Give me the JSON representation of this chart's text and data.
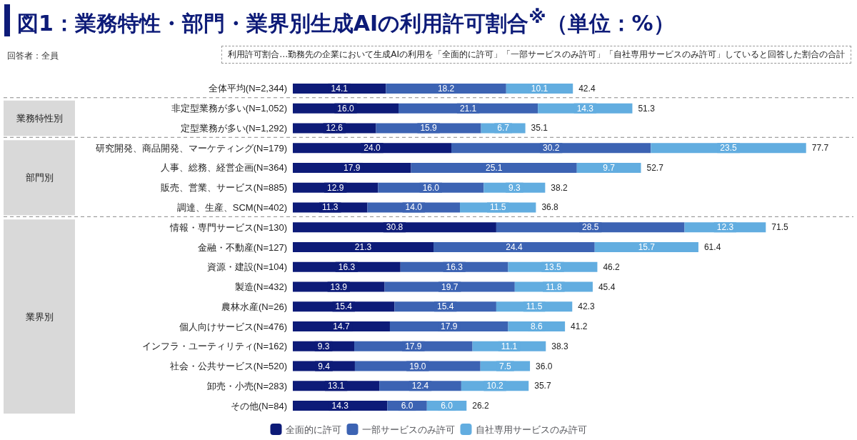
{
  "chart_data": {
    "type": "bar",
    "orientation": "horizontal",
    "stacked": true,
    "legend": "bottom",
    "title": "図1：業務特性・部門・業界別生成AIの利用許可割合$^{※}$（単位：%）",
    "subtitle": "回答者：全員",
    "annotations": [
      "利用許可割合…勤務先の企業において生成AIの利用を「全面的に許可」「一部サービスのみ許可」「自社専用サービスのみ許可」していると回答した割合の合計",
      "業務特性別",
      "部門別",
      "業界別"
    ],
    "categories": [
      "全体平均(N=2,344)",
      "非定型業務が多い(N=1,052)",
      "定型業務が多い(N=1,292)",
      "研究開発、商品開発、マーケティング(N=179)",
      "人事、総務、経営企画(N=364)",
      "販売、営業、サービス(N=885)",
      "調達、生産、SCM(N=402)",
      "情報・専門サービス(N=130)",
      "金融・不動産(N=127)",
      "資源・建設(N=104)",
      "製造(N=432)",
      "農林水産(N=26)",
      "個人向けサービス(N=476)",
      "インフラ・ユーティリティ(N=162)",
      "社会・公共サービス(N=520)",
      "卸売・小売(N=283)",
      "その他(N=84)"
    ],
    "series": [
      {
        "name": "全面的に許可",
        "color": "#0d1b78",
        "values": [
          14.1,
          16.0,
          12.6,
          24.0,
          17.9,
          12.9,
          11.3,
          30.8,
          21.3,
          16.3,
          13.9,
          15.4,
          14.7,
          9.3,
          9.4,
          13.1,
          14.3
        ],
        "value_labels": [
          "14.1",
          "16.0",
          "12.6",
          "24.0",
          "17.9",
          "12.9",
          "11.3",
          "30.8",
          "21.3",
          "16.3",
          "13.9",
          "15.4",
          "14.7",
          "9.3",
          "9.4",
          "13.1",
          "14.3"
        ]
      },
      {
        "name": "一部サービスのみ許可",
        "color": "#3c63b3",
        "values": [
          18.2,
          21.1,
          15.9,
          30.2,
          25.1,
          16.0,
          14.0,
          28.5,
          24.4,
          16.3,
          19.7,
          15.4,
          17.9,
          17.9,
          19.0,
          12.4,
          6.0
        ],
        "value_labels": [
          "18.2",
          "21.1",
          "15.9",
          "30.2",
          "25.1",
          "16.0",
          "14.0",
          "28.5",
          "24.4",
          "16.3",
          "19.7",
          "15.4",
          "17.9",
          "17.9",
          "19.0",
          "12.4",
          "6.0"
        ]
      },
      {
        "name": "自社専用サービスのみ許可",
        "color": "#62ade0",
        "values": [
          10.1,
          14.3,
          6.7,
          23.5,
          9.7,
          9.3,
          11.5,
          12.3,
          15.7,
          13.5,
          11.8,
          11.5,
          8.6,
          11.1,
          7.5,
          10.2,
          6.0
        ],
        "value_labels": [
          "10.1",
          "14.3",
          "6.7",
          "23.5",
          "9.7",
          "9.3",
          "11.5",
          "12.3",
          "15.7",
          "13.5",
          "11.8",
          "11.5",
          "8.6",
          "11.1",
          "7.5",
          "10.2",
          "6.0"
        ]
      }
    ],
    "totals": [
      "42.4",
      "51.3",
      "35.1",
      "77.7",
      "52.7",
      "38.2",
      "36.8",
      "71.5",
      "61.4",
      "46.2",
      "45.4",
      "42.3",
      "41.2",
      "38.3",
      "36.0",
      "35.7",
      "26.2"
    ]
  }
}
